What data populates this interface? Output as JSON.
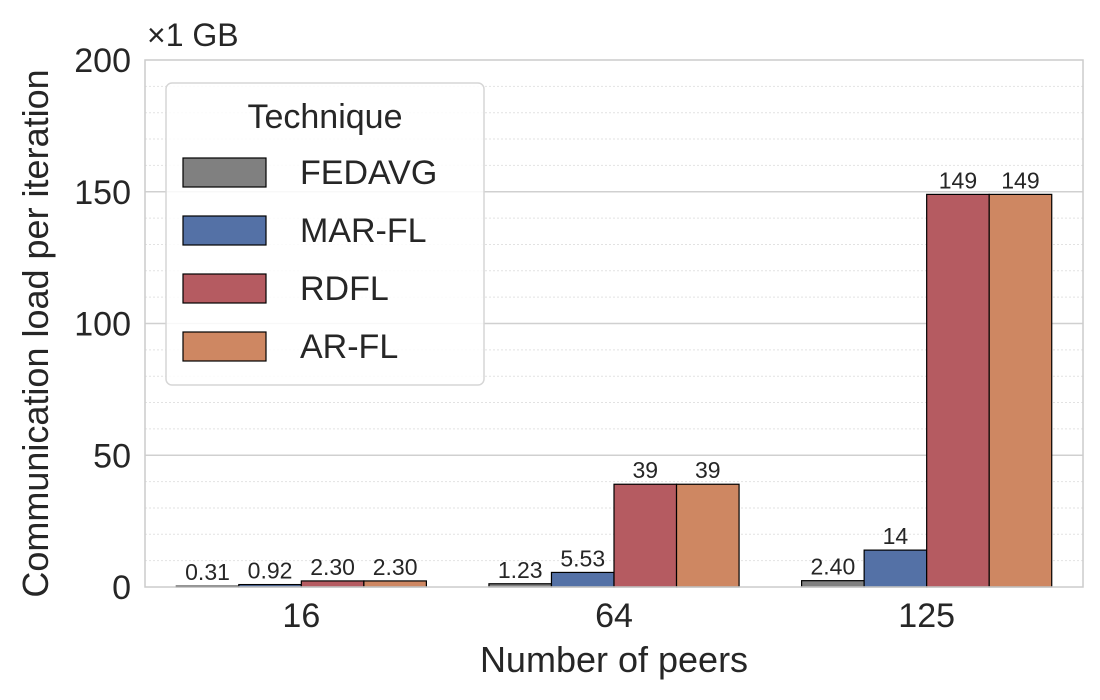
{
  "chart_data": {
    "type": "bar",
    "categories": [
      "16",
      "64",
      "125"
    ],
    "series": [
      {
        "name": "FEDAVG",
        "color": "#808080",
        "values": [
          0.31,
          1.23,
          2.4
        ],
        "labels": [
          "0.31",
          "1.23",
          "2.40"
        ]
      },
      {
        "name": "MAR-FL",
        "color": "#5471A6",
        "values": [
          0.92,
          5.53,
          14
        ],
        "labels": [
          "0.92",
          "5.53",
          "14"
        ]
      },
      {
        "name": "RDFL",
        "color": "#B55B61",
        "values": [
          2.3,
          39,
          149
        ],
        "labels": [
          "2.30",
          "39",
          "149"
        ]
      },
      {
        "name": "AR-FL",
        "color": "#CE8762",
        "values": [
          2.3,
          39,
          149
        ],
        "labels": [
          "2.30",
          "39",
          "149"
        ]
      }
    ],
    "xlabel": "Number of peers",
    "ylabel": "Communication load per iteration",
    "unit_label": "×1 GB",
    "ylim": [
      0,
      200
    ],
    "yticks": [
      "0",
      "50",
      "100",
      "150",
      "200"
    ],
    "ytick_values": [
      0,
      50,
      100,
      150,
      200
    ],
    "minor_grid_step": 10,
    "grid": true,
    "legend": {
      "title": "Technique",
      "placement": "top-left"
    }
  }
}
